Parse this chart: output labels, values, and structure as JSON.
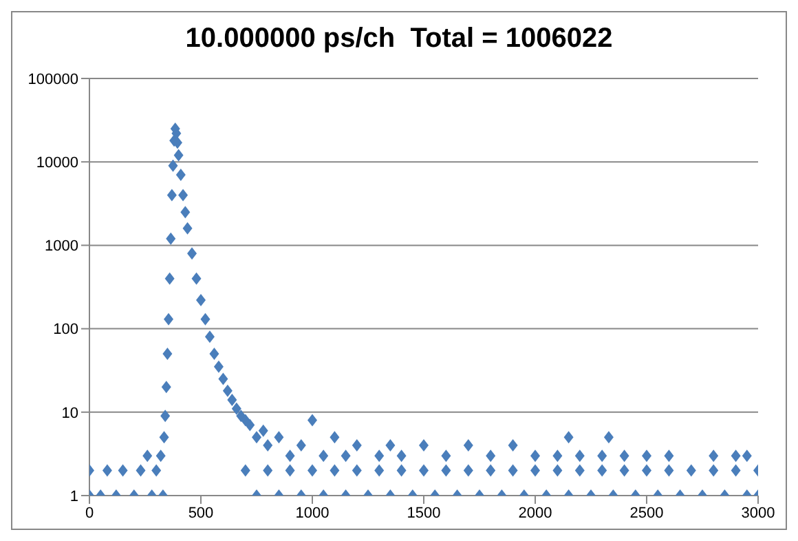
{
  "chart_data": {
    "type": "scatter",
    "title": "10.000000 ps/ch  Total = 1006022",
    "log": "y",
    "grid": "y",
    "marker": "diamond",
    "xlim": [
      0,
      3000
    ],
    "xticks": [
      0,
      500,
      1000,
      1500,
      2000,
      2500,
      3000
    ],
    "ylim": [
      1,
      100000
    ],
    "yticks": [
      1,
      10,
      100,
      1000,
      10000,
      100000
    ],
    "series": [
      {
        "color": "#4a7ebb",
        "x": [
          0,
          0,
          50,
          80,
          120,
          150,
          200,
          230,
          260,
          280,
          300,
          320,
          330,
          335,
          340,
          345,
          350,
          355,
          360,
          365,
          370,
          375,
          380,
          385,
          390,
          395,
          400,
          410,
          420,
          430,
          440,
          460,
          480,
          500,
          520,
          540,
          560,
          580,
          600,
          620,
          640,
          660,
          680,
          700,
          720,
          750,
          780,
          800,
          850,
          900,
          950,
          1000,
          1050,
          1100,
          1150,
          1200,
          1300,
          1350,
          1400,
          1500,
          1600,
          1700,
          1800,
          1900,
          2000,
          2100,
          2150,
          2200,
          2300,
          2330,
          2400,
          2500,
          2600,
          2800,
          2900,
          2950,
          700,
          800,
          900,
          1000,
          1100,
          1200,
          1300,
          1400,
          1500,
          1600,
          1700,
          1800,
          1900,
          2000,
          2100,
          2200,
          2300,
          2400,
          2500,
          2600,
          2700,
          2800,
          2900,
          3000,
          750,
          850,
          950,
          1050,
          1150,
          1250,
          1350,
          1450,
          1550,
          1650,
          1750,
          1850,
          1950,
          2050,
          2150,
          2250,
          2350,
          2450,
          2550,
          2650,
          2750,
          2850,
          2950,
          3000
        ],
        "values": [
          1,
          2,
          1,
          2,
          1,
          2,
          1,
          2,
          3,
          1,
          2,
          3,
          1,
          5,
          9,
          20,
          50,
          130,
          400,
          1200,
          4000,
          9000,
          18000,
          25000,
          22000,
          17000,
          12000,
          7000,
          4000,
          2500,
          1600,
          800,
          400,
          220,
          130,
          80,
          50,
          35,
          25,
          18,
          14,
          11,
          9,
          8,
          7,
          5,
          6,
          4,
          5,
          3,
          4,
          8,
          3,
          5,
          3,
          4,
          3,
          4,
          3,
          4,
          3,
          4,
          3,
          4,
          3,
          3,
          5,
          3,
          3,
          5,
          3,
          3,
          3,
          3,
          3,
          3,
          2,
          2,
          2,
          2,
          2,
          2,
          2,
          2,
          2,
          2,
          2,
          2,
          2,
          2,
          2,
          2,
          2,
          2,
          2,
          2,
          2,
          2,
          2,
          2,
          1,
          1,
          1,
          1,
          1,
          1,
          1,
          1,
          1,
          1,
          1,
          1,
          1,
          1,
          1,
          1,
          1,
          1,
          1,
          1,
          1,
          1,
          1,
          1
        ]
      }
    ]
  }
}
